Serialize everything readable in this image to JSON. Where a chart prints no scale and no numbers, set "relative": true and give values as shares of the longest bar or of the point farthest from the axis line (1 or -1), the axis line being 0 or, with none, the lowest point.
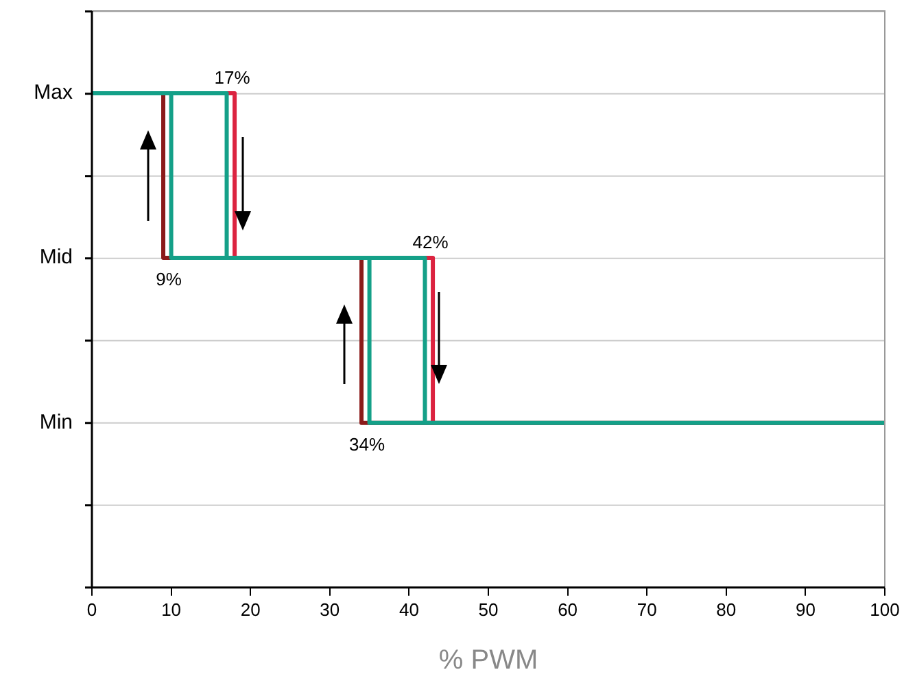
{
  "chart_data": {
    "type": "line",
    "xlabel": "% PWM",
    "xlim": [
      0,
      100
    ],
    "xticks": [
      0,
      10,
      20,
      30,
      40,
      50,
      60,
      70,
      80,
      90,
      100
    ],
    "relative": true,
    "grid": "y",
    "legend": false,
    "marker": "none",
    "line_style": "solid",
    "series": [
      {
        "color": "#14a088",
        "x": [
          0,
          10,
          10,
          35,
          35,
          100,
          42,
          42,
          17,
          17,
          10
        ],
        "values": [
          1,
          1,
          0.667,
          0.667,
          0.333,
          0.333,
          0.333,
          0.667,
          0.667,
          1,
          1
        ]
      },
      {
        "color": "#dc2340",
        "x": [
          9,
          18,
          18,
          43,
          43
        ],
        "values": [
          1,
          1,
          0.667,
          0.667,
          0.333
        ]
      },
      {
        "color": "#8b1a1a",
        "x": [
          0,
          9,
          9,
          34,
          34,
          100
        ],
        "values": [
          1,
          1,
          0.667,
          0.667,
          0.333,
          0.333
        ]
      }
    ],
    "annotations": [
      {
        "text": "17%",
        "x": 17,
        "y": 1
      },
      {
        "text": "9%",
        "x": 9,
        "y": 0.667
      },
      {
        "text": "42%",
        "x": 42,
        "y": 0.667
      },
      {
        "text": "34%",
        "x": 34,
        "y": 0.333
      },
      "Max",
      "Mid",
      "Min"
    ]
  }
}
